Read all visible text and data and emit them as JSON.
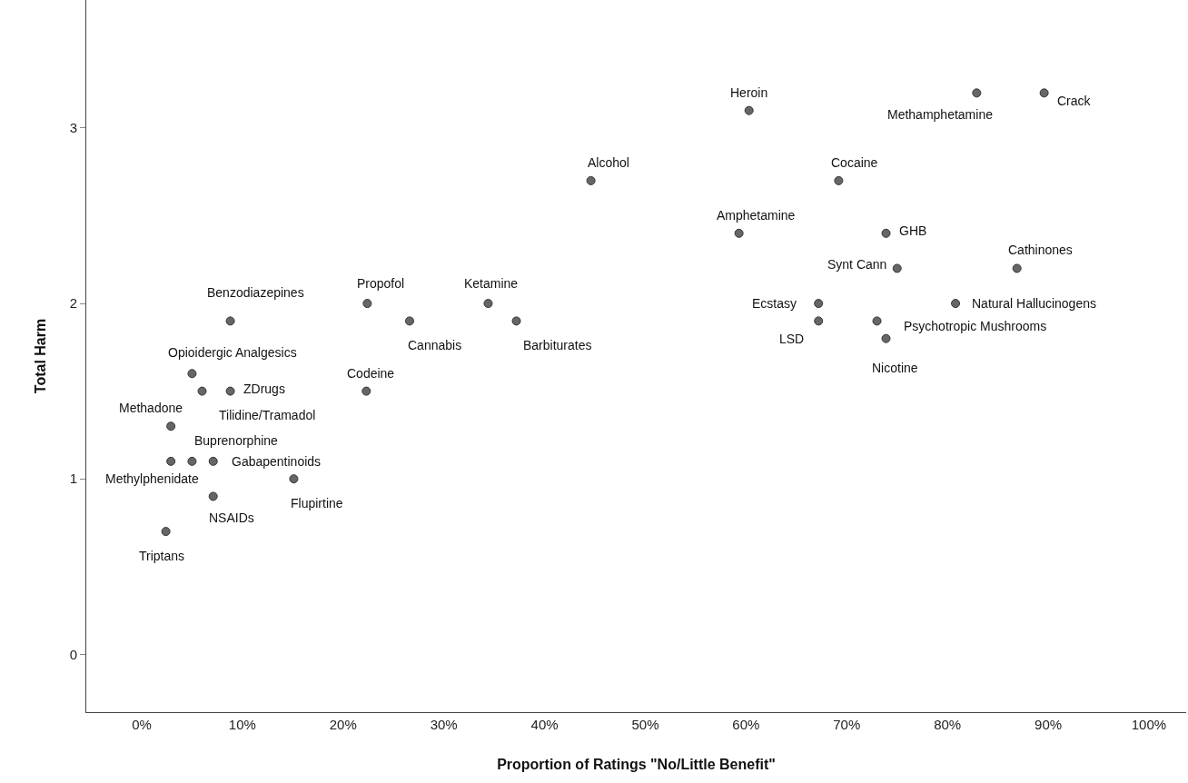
{
  "chart_data": {
    "type": "scatter",
    "xlabel": "Proportion of Ratings \"No/Little Benefit\"",
    "ylabel": "Total Harm",
    "x": [
      60.3,
      82.9,
      89.6,
      44.6,
      69.2,
      59.3,
      73.9,
      75.0,
      86.9,
      22.4,
      34.4,
      67.2,
      80.8,
      8.8,
      26.6,
      37.2,
      67.2,
      73.0,
      73.9,
      5.0,
      6.0,
      8.8,
      22.3,
      2.9,
      2.9,
      5.0,
      7.1,
      15.1,
      7.1,
      2.4
    ],
    "series": [
      {
        "color": "#666666",
        "values": [
          3.1,
          3.2,
          3.2,
          2.7,
          2.7,
          2.4,
          2.4,
          2.2,
          2.2,
          2.0,
          2.0,
          2.0,
          2.0,
          1.9,
          1.9,
          1.9,
          1.9,
          1.9,
          1.8,
          1.6,
          1.5,
          1.5,
          1.5,
          1.3,
          1.1,
          1.1,
          1.1,
          1.0,
          0.9,
          0.7
        ]
      }
    ],
    "annotations": [
      {
        "text": "Heroin",
        "x": 60.3,
        "y": 3.1
      },
      {
        "text": "Methamphetamine",
        "x": 82.9,
        "y": 3.2
      },
      {
        "text": "Crack",
        "x": 89.6,
        "y": 3.2
      },
      {
        "text": "Alcohol",
        "x": 44.6,
        "y": 2.7
      },
      {
        "text": "Cocaine",
        "x": 69.2,
        "y": 2.7
      },
      {
        "text": "Amphetamine",
        "x": 59.3,
        "y": 2.4
      },
      {
        "text": "GHB",
        "x": 73.9,
        "y": 2.4
      },
      {
        "text": "Synt Cann",
        "x": 75.0,
        "y": 2.2
      },
      {
        "text": "Cathinones",
        "x": 86.9,
        "y": 2.2
      },
      {
        "text": "Propofol",
        "x": 22.4,
        "y": 2.0
      },
      {
        "text": "Ketamine",
        "x": 34.4,
        "y": 2.0
      },
      {
        "text": "Ecstasy",
        "x": 67.2,
        "y": 2.0
      },
      {
        "text": "Natural Hallucinogens",
        "x": 80.8,
        "y": 2.0
      },
      {
        "text": "Benzodiazepines",
        "x": 8.8,
        "y": 1.9
      },
      {
        "text": "Cannabis",
        "x": 26.6,
        "y": 1.9
      },
      {
        "text": "Barbiturates",
        "x": 37.2,
        "y": 1.9
      },
      {
        "text": "LSD",
        "x": 67.2,
        "y": 1.9
      },
      {
        "text": "Psychotropic Mushrooms",
        "x": 73.0,
        "y": 1.9
      },
      {
        "text": "Nicotine",
        "x": 73.9,
        "y": 1.8
      },
      {
        "text": "Opioidergic Analgesics",
        "x": 5.0,
        "y": 1.6
      },
      {
        "text": "Tilidine/Tramadol",
        "x": 6.0,
        "y": 1.5
      },
      {
        "text": "ZDrugs",
        "x": 8.8,
        "y": 1.5
      },
      {
        "text": "Codeine",
        "x": 22.3,
        "y": 1.5
      },
      {
        "text": "Methadone",
        "x": 2.9,
        "y": 1.3
      },
      {
        "text": "Methylphenidate",
        "x": 2.9,
        "y": 1.1
      },
      {
        "text": "Buprenorphine",
        "x": 5.0,
        "y": 1.1
      },
      {
        "text": "Gabapentinoids",
        "x": 7.1,
        "y": 1.1
      },
      {
        "text": "Flupirtine",
        "x": 15.1,
        "y": 1.0
      },
      {
        "text": "NSAIDs",
        "x": 7.1,
        "y": 0.9
      },
      {
        "text": "Triptans",
        "x": 2.4,
        "y": 0.7
      }
    ],
    "xlim": [
      -5.5,
      103.7
    ],
    "ylim": [
      -0.33,
      3.73
    ],
    "xticks": [
      {
        "value": 0,
        "label": "0%"
      },
      {
        "value": 10,
        "label": "10%"
      },
      {
        "value": 20,
        "label": "20%"
      },
      {
        "value": 30,
        "label": "30%"
      },
      {
        "value": 40,
        "label": "40%"
      },
      {
        "value": 50,
        "label": "50%"
      },
      {
        "value": 60,
        "label": "60%"
      },
      {
        "value": 70,
        "label": "70%"
      },
      {
        "value": 80,
        "label": "80%"
      },
      {
        "value": 90,
        "label": "90%"
      },
      {
        "value": 100,
        "label": "100%"
      }
    ],
    "yticks": [
      0,
      1,
      2,
      3
    ],
    "marker": "circle"
  }
}
